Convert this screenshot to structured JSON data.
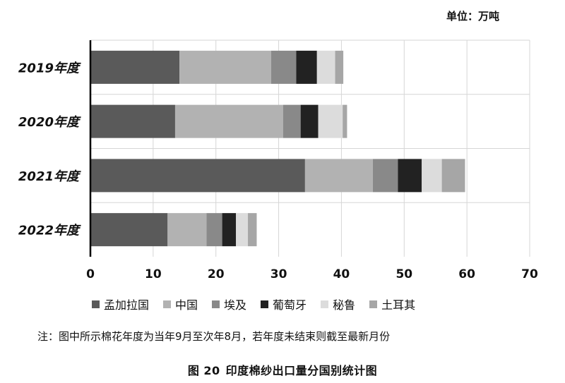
{
  "unit_label": "单位：万吨",
  "note": "注：图中所示棉花年度为当年9月至次年8月，若年度未结束则截至最新月份",
  "figure": {
    "number": "图 20",
    "title": "印度棉纱出口量分国别统计图"
  },
  "colors": [
    "#5a5a5a",
    "#b2b2b2",
    "#898989",
    "#222222",
    "#dcdcdc",
    "#a6a6a6"
  ],
  "chart_data": {
    "type": "bar",
    "orientation": "horizontal",
    "stacked": true,
    "categories": [
      "2019年度",
      "2020年度",
      "2021年度",
      "2022年度"
    ],
    "series": [
      {
        "name": "孟加拉国",
        "values": [
          14.2,
          13.5,
          34.2,
          12.3
        ]
      },
      {
        "name": "中国",
        "values": [
          14.6,
          17.2,
          10.8,
          6.2
        ]
      },
      {
        "name": "埃及",
        "values": [
          4.0,
          2.8,
          4.0,
          2.5
        ]
      },
      {
        "name": "葡萄牙",
        "values": [
          3.3,
          2.8,
          3.8,
          2.2
        ]
      },
      {
        "name": "秘鲁",
        "values": [
          2.9,
          3.9,
          3.2,
          1.9
        ]
      },
      {
        "name": "土耳其",
        "values": [
          1.3,
          0.7,
          3.7,
          1.4
        ]
      }
    ],
    "xlim": [
      0,
      70
    ],
    "xticks": [
      0,
      10,
      20,
      30,
      40,
      50,
      60,
      70
    ],
    "grid": "vertical",
    "legend_position": "bottom"
  }
}
